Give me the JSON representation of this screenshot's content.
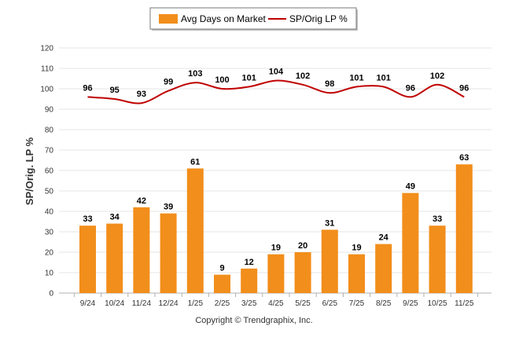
{
  "chart_data": {
    "type": "bar",
    "categories": [
      "9/24",
      "10/24",
      "11/24",
      "12/24",
      "1/25",
      "2/25",
      "3/25",
      "4/25",
      "5/25",
      "6/25",
      "7/25",
      "8/25",
      "9/25",
      "10/25",
      "11/25"
    ],
    "series": [
      {
        "name": "Avg Days on Market",
        "kind": "bar",
        "color": "#f28e1b",
        "values": [
          33,
          34,
          42,
          39,
          61,
          9,
          12,
          19,
          20,
          31,
          19,
          24,
          49,
          33,
          63
        ]
      },
      {
        "name": "SP/Orig LP %",
        "kind": "line",
        "color": "#c00000",
        "values": [
          96,
          95,
          93,
          99,
          103,
          100,
          101,
          104,
          102,
          98,
          101,
          101,
          96,
          102,
          96
        ]
      }
    ],
    "ylabel": "SP/Orig. LP %",
    "ylim": [
      0,
      120
    ],
    "yticks": [
      0,
      10,
      20,
      30,
      40,
      50,
      60,
      70,
      80,
      90,
      100,
      110,
      120
    ],
    "grid": true,
    "legend_position": "top-center"
  },
  "footer": {
    "credit": "Copyright © Trendgraphix, Inc."
  }
}
